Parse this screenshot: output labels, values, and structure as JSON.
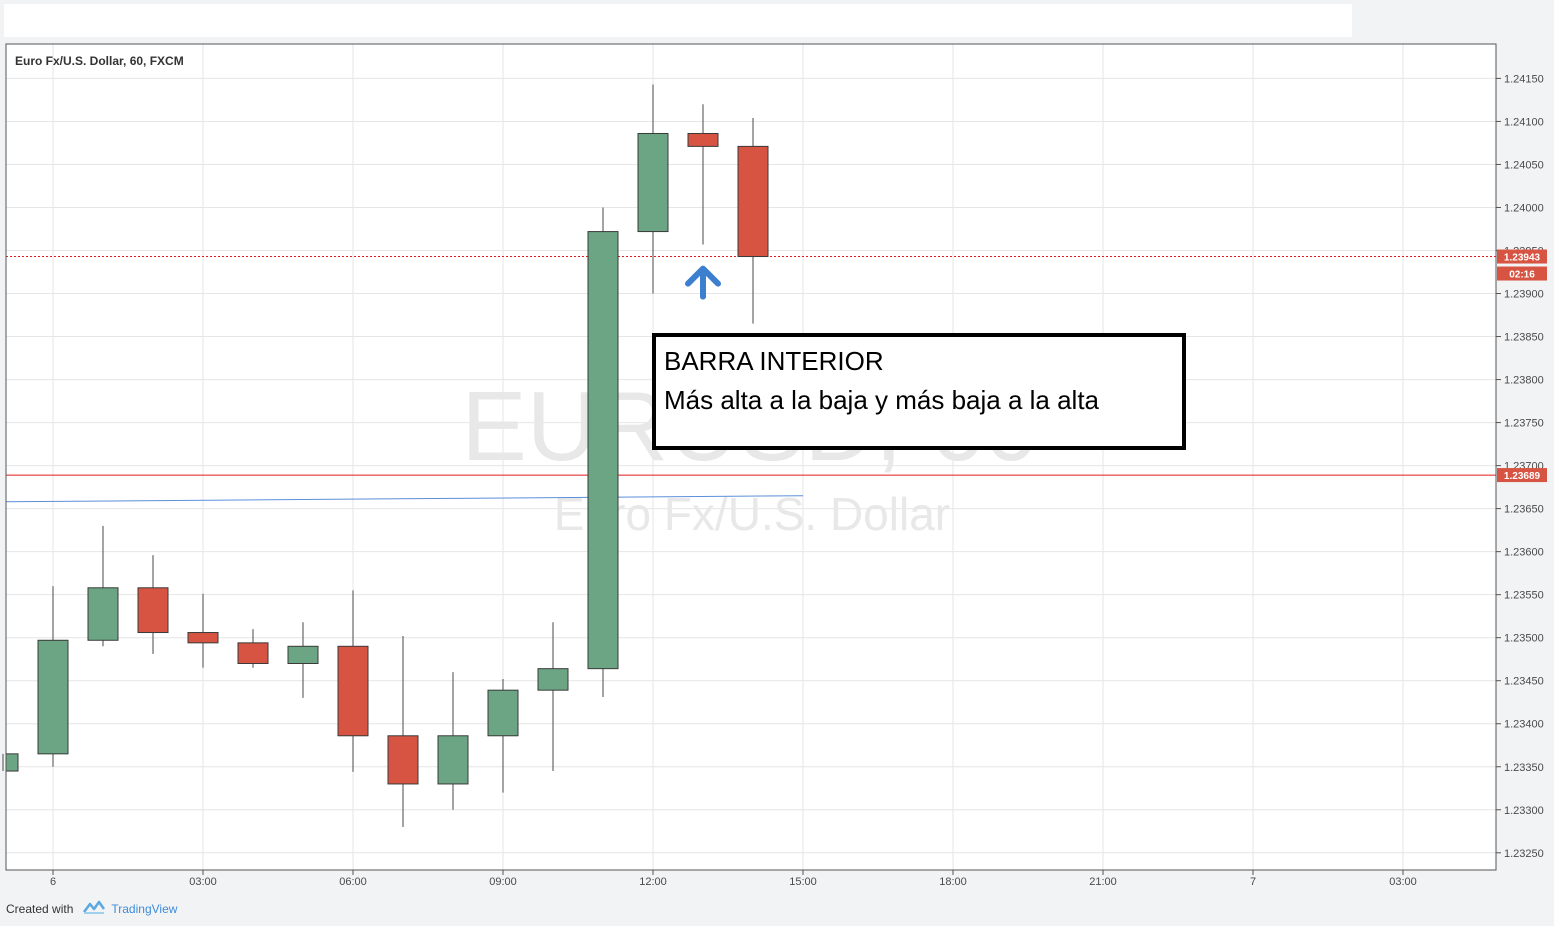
{
  "header": {
    "symbol_title": "Euro Fx/U.S. Dollar, 60, FXCM"
  },
  "watermark": {
    "ticker": "EURUSD, 60",
    "description": "Euro Fx/U.S. Dollar"
  },
  "annotation": {
    "line1": "BARRA INTERIOR",
    "line2": "Más alta a la baja y más baja a la alta"
  },
  "footer": {
    "created_with": "Created with",
    "brand": "TradingView"
  },
  "colors": {
    "up": "#6ba583",
    "down": "#d75442",
    "grid": "#e6e6e6",
    "hline": "#e11b1b",
    "trendline": "#5a8fd8",
    "arrow": "#3c7fcf"
  },
  "chart_data": {
    "type": "candlestick",
    "title": "Euro Fx/U.S. Dollar, 60, FXCM",
    "ylim": [
      1.2323,
      1.2419
    ],
    "x_labels": [
      {
        "label": "6",
        "index": 1
      },
      {
        "label": "03:00",
        "index": 4
      },
      {
        "label": "06:00",
        "index": 7
      },
      {
        "label": "09:00",
        "index": 10
      },
      {
        "label": "12:00",
        "index": 13
      },
      {
        "label": "15:00",
        "index": 16
      },
      {
        "label": "18:00",
        "index": 19
      },
      {
        "label": "21:00",
        "index": 22
      },
      {
        "label": "7",
        "index": 25
      },
      {
        "label": "03:00",
        "index": 28
      }
    ],
    "y_ticks": [
      "1.24150",
      "1.24100",
      "1.24050",
      "1.24000",
      "1.23950",
      "1.23900",
      "1.23850",
      "1.23800",
      "1.23750",
      "1.23700",
      "1.23650",
      "1.23600",
      "1.23550",
      "1.23500",
      "1.23450",
      "1.23400",
      "1.23350",
      "1.23300",
      "1.23250"
    ],
    "candles": [
      {
        "o": 1.23345,
        "h": 1.23365,
        "l": 1.23345,
        "c": 1.23365
      },
      {
        "o": 1.23365,
        "h": 1.2356,
        "l": 1.2335,
        "c": 1.23497
      },
      {
        "o": 1.23497,
        "h": 1.2363,
        "l": 1.2349,
        "c": 1.23558
      },
      {
        "o": 1.23558,
        "h": 1.23596,
        "l": 1.23481,
        "c": 1.23506
      },
      {
        "o": 1.23506,
        "h": 1.23551,
        "l": 1.23465,
        "c": 1.23494
      },
      {
        "o": 1.23494,
        "h": 1.2351,
        "l": 1.23465,
        "c": 1.2347
      },
      {
        "o": 1.2347,
        "h": 1.23518,
        "l": 1.2343,
        "c": 1.2349
      },
      {
        "o": 1.2349,
        "h": 1.23555,
        "l": 1.23344,
        "c": 1.23386
      },
      {
        "o": 1.23386,
        "h": 1.23502,
        "l": 1.2328,
        "c": 1.2333
      },
      {
        "o": 1.2333,
        "h": 1.2346,
        "l": 1.233,
        "c": 1.23386
      },
      {
        "o": 1.23386,
        "h": 1.23452,
        "l": 1.2332,
        "c": 1.23439
      },
      {
        "o": 1.23439,
        "h": 1.23518,
        "l": 1.23345,
        "c": 1.23464
      },
      {
        "o": 1.23464,
        "h": 1.24,
        "l": 1.23431,
        "c": 1.23972
      },
      {
        "o": 1.23972,
        "h": 1.24143,
        "l": 1.239,
        "c": 1.24086
      },
      {
        "o": 1.24086,
        "h": 1.2412,
        "l": 1.23957,
        "c": 1.24071
      },
      {
        "o": 1.24071,
        "h": 1.24104,
        "l": 1.23865,
        "c": 1.23943
      }
    ],
    "horizontal_lines": [
      {
        "value": 1.23943,
        "label": "1.23943",
        "style": "dotted"
      },
      {
        "value": 1.23689,
        "label": "1.23689",
        "style": "solid"
      }
    ],
    "countdown_label": "02:16",
    "trendline": {
      "start": {
        "index": -1,
        "value": 1.23658
      },
      "end": {
        "index": 16,
        "value": 1.23665
      }
    },
    "marker": {
      "type": "arrow-up",
      "index": 14,
      "value": 1.23915
    }
  }
}
